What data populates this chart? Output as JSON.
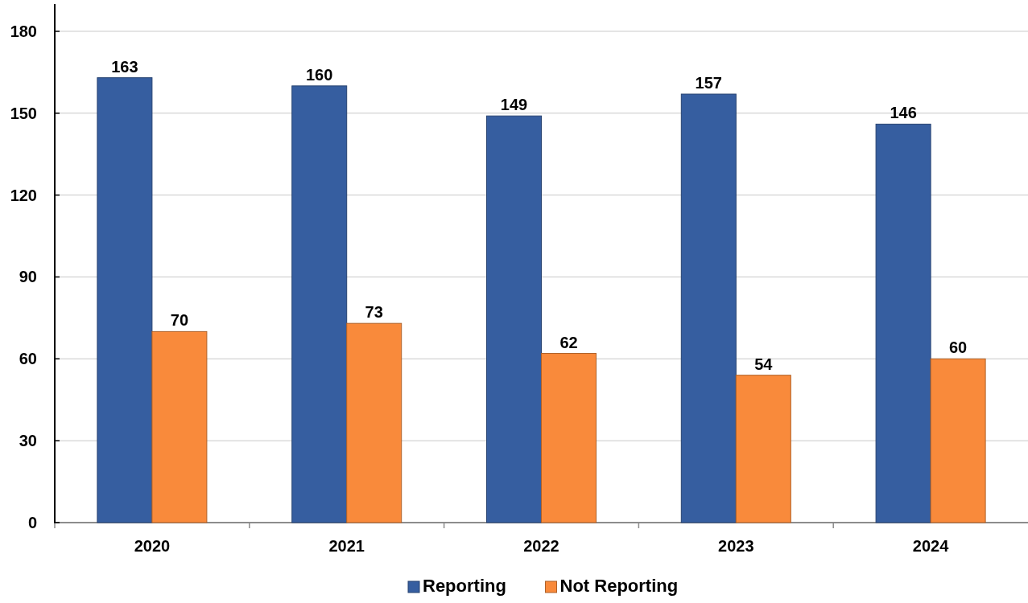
{
  "chart_data": {
    "type": "bar",
    "categories": [
      "2020",
      "2021",
      "2022",
      "2023",
      "2024"
    ],
    "series": [
      {
        "name": "Reporting",
        "color": "#365ea0",
        "values": [
          163,
          160,
          149,
          157,
          146
        ]
      },
      {
        "name": "Not Reporting",
        "color": "#f98a3b",
        "values": [
          70,
          73,
          62,
          54,
          60
        ]
      }
    ],
    "ylim": [
      0,
      190
    ],
    "yticks": [
      0,
      30,
      60,
      90,
      120,
      150,
      180
    ],
    "grid": "y",
    "legend": "bottom",
    "data_labels": true
  }
}
